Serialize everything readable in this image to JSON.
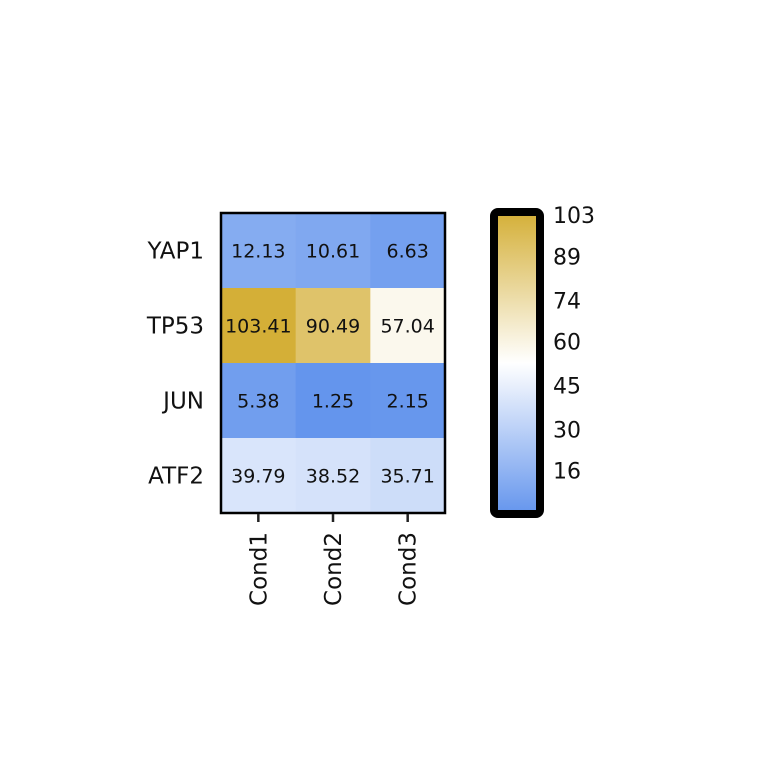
{
  "chart_data": {
    "type": "heatmap",
    "rows": [
      "YAP1",
      "TP53",
      "JUN",
      "ATF2"
    ],
    "columns": [
      "Cond1",
      "Cond2",
      "Cond3"
    ],
    "values": [
      [
        12.13,
        10.61,
        6.63
      ],
      [
        103.41,
        90.49,
        57.04
      ],
      [
        5.38,
        1.25,
        2.15
      ],
      [
        39.79,
        38.52,
        35.71
      ]
    ],
    "value_labels": [
      [
        "12.13",
        "10.61",
        "6.63"
      ],
      [
        "103.41",
        "90.49",
        "57.04"
      ],
      [
        "5.38",
        "1.25",
        "2.15"
      ],
      [
        "39.79",
        "38.52",
        "35.71"
      ]
    ],
    "colorbar": {
      "min": 1.25,
      "max": 103.41,
      "ticks": [
        16,
        30,
        45,
        60,
        74,
        89,
        103
      ],
      "tick_labels": [
        "16",
        "30",
        "45",
        "60",
        "74",
        "89",
        "103"
      ],
      "colors": [
        "#6495ED",
        "#FFFFFF",
        "#D4AF37"
      ]
    }
  }
}
